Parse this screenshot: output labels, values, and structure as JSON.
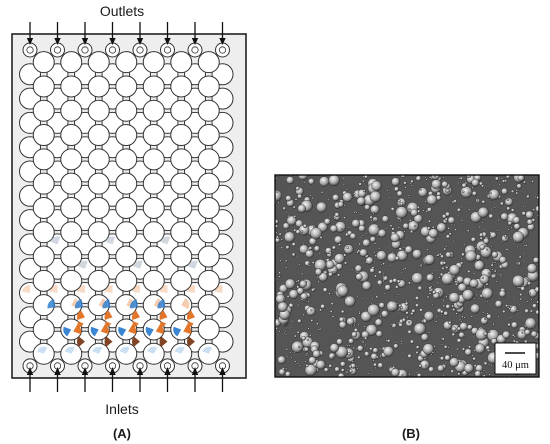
{
  "panel_a": {
    "top_label": "Outlets",
    "bottom_label": "Inlets",
    "caption": "(A)",
    "grid": {
      "rows": 14,
      "columns": 8
    }
  },
  "panel_b": {
    "caption": "(B)",
    "scale_bar_label": "40 μm"
  },
  "colors": {
    "device_fill": "#eeeeee",
    "blue_droplet": "#2f7fd0",
    "orange_droplet": "#e07020",
    "brown_droplet": "#7a3a18",
    "micrograph_bg": "#555555"
  }
}
